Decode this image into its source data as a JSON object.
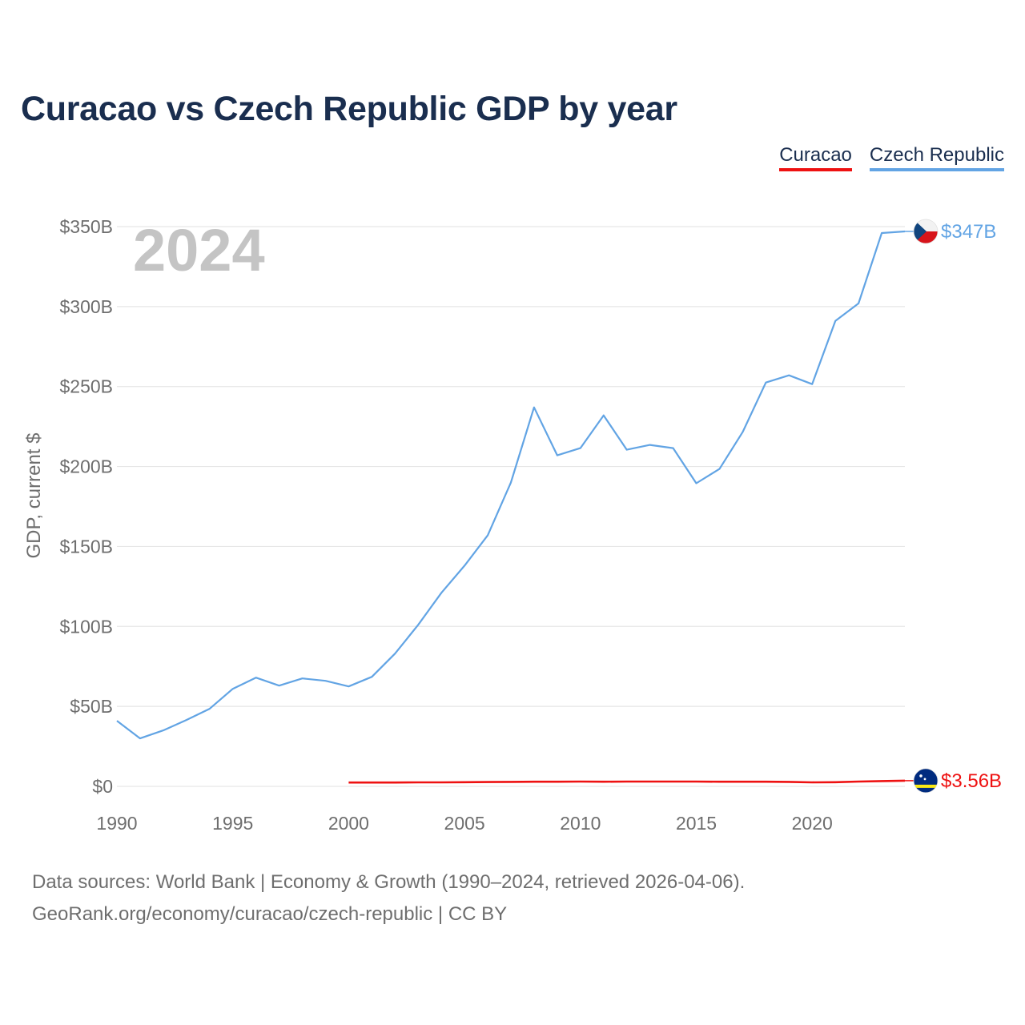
{
  "title": "Curacao vs Czech Republic GDP by year",
  "legend": [
    {
      "name": "Curacao",
      "color": "#ee1111"
    },
    {
      "name": "Czech Republic",
      "color": "#62a4e4"
    }
  ],
  "year_watermark": "2024",
  "footer": {
    "line1": "Data sources: World Bank | Economy & Growth (1990–2024, retrieved 2026-04-06).",
    "line2": "GeoRank.org/economy/curacao/czech-republic | CC BY"
  },
  "chart_data": {
    "type": "line",
    "title": "Curacao vs Czech Republic GDP by year",
    "xlabel": "",
    "ylabel": "GDP, current $",
    "xlim": [
      1990,
      2024
    ],
    "ylim": [
      0,
      350
    ],
    "y_unit": "billions of current US$",
    "grid": true,
    "x_ticks": [
      1990,
      1995,
      2000,
      2005,
      2010,
      2015,
      2020
    ],
    "x_tick_labels": [
      "1990",
      "1995",
      "2000",
      "2005",
      "2010",
      "2015",
      "2020"
    ],
    "y_ticks": [
      0,
      50,
      100,
      150,
      200,
      250,
      300,
      350
    ],
    "y_tick_labels": [
      "$0",
      "$50B",
      "$100B",
      "$150B",
      "$200B",
      "$250B",
      "$300B",
      "$350B"
    ],
    "legend_position": "top-right",
    "series": [
      {
        "name": "Czech Republic",
        "color": "#62a4e4",
        "end_label": "$347B",
        "flag_icon": "czech-republic-flag-icon",
        "x": [
          1990,
          1991,
          1992,
          1993,
          1994,
          1995,
          1996,
          1997,
          1998,
          1999,
          2000,
          2001,
          2002,
          2003,
          2004,
          2005,
          2006,
          2007,
          2008,
          2009,
          2010,
          2011,
          2012,
          2013,
          2014,
          2015,
          2016,
          2017,
          2018,
          2019,
          2020,
          2021,
          2022,
          2023,
          2024
        ],
        "values": [
          41,
          30,
          35,
          41.5,
          48.5,
          61,
          68,
          63,
          67.5,
          66,
          62.5,
          68.5,
          83,
          101,
          121,
          138,
          157,
          190,
          237,
          207,
          211.5,
          232,
          210.5,
          213.5,
          211.5,
          189.5,
          198.5,
          221.5,
          252.5,
          257,
          251.5,
          291,
          302,
          346,
          347
        ]
      },
      {
        "name": "Curacao",
        "color": "#ee1111",
        "end_label": "$3.56B",
        "flag_icon": "curacao-flag-icon",
        "x": [
          2000,
          2001,
          2002,
          2003,
          2004,
          2005,
          2006,
          2007,
          2008,
          2009,
          2010,
          2011,
          2012,
          2013,
          2014,
          2015,
          2016,
          2017,
          2018,
          2019,
          2020,
          2021,
          2022,
          2023,
          2024
        ],
        "values": [
          2.4,
          2.4,
          2.4,
          2.5,
          2.5,
          2.6,
          2.7,
          2.8,
          2.9,
          2.9,
          3.0,
          2.9,
          3.0,
          3.0,
          3.0,
          3.0,
          2.9,
          2.9,
          2.9,
          2.8,
          2.5,
          2.6,
          3.0,
          3.3,
          3.56
        ]
      }
    ]
  }
}
